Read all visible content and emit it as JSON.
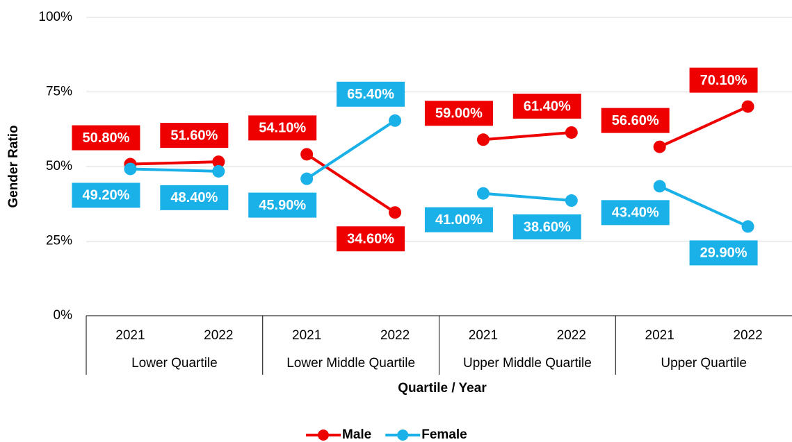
{
  "chart_data": {
    "type": "line",
    "groups": [
      {
        "name": "Lower Quartile",
        "categories": [
          "2021",
          "2022"
        ]
      },
      {
        "name": "Lower Middle Quartile",
        "categories": [
          "2021",
          "2022"
        ]
      },
      {
        "name": "Upper Middle Quartile",
        "categories": [
          "2021",
          "2022"
        ]
      },
      {
        "name": "Upper Quartile",
        "categories": [
          "2021",
          "2022"
        ]
      }
    ],
    "series": [
      {
        "name": "Male",
        "color": "#ee0000",
        "values": [
          50.8,
          51.6,
          54.1,
          34.6,
          59.0,
          61.4,
          56.6,
          70.1
        ],
        "value_labels": [
          "50.80%",
          "51.60%",
          "54.10%",
          "34.60%",
          "59.00%",
          "61.40%",
          "56.60%",
          "70.10%"
        ]
      },
      {
        "name": "Female",
        "color": "#1ab0e8",
        "values": [
          49.2,
          48.4,
          45.9,
          65.4,
          41.0,
          38.6,
          43.4,
          29.9
        ],
        "value_labels": [
          "49.20%",
          "48.40%",
          "45.90%",
          "65.40%",
          "41.00%",
          "38.60%",
          "43.40%",
          "29.90%"
        ]
      }
    ],
    "ylim": [
      0,
      100
    ],
    "yticks": [
      {
        "value": 0,
        "label": "0%"
      },
      {
        "value": 25,
        "label": "25%"
      },
      {
        "value": 50,
        "label": "50%"
      },
      {
        "value": 75,
        "label": "75%"
      },
      {
        "value": 100,
        "label": "100%"
      }
    ],
    "ylabel": "Gender Ratio",
    "xlabel": "Quartile / Year",
    "grid": true,
    "legend": "bottom"
  }
}
